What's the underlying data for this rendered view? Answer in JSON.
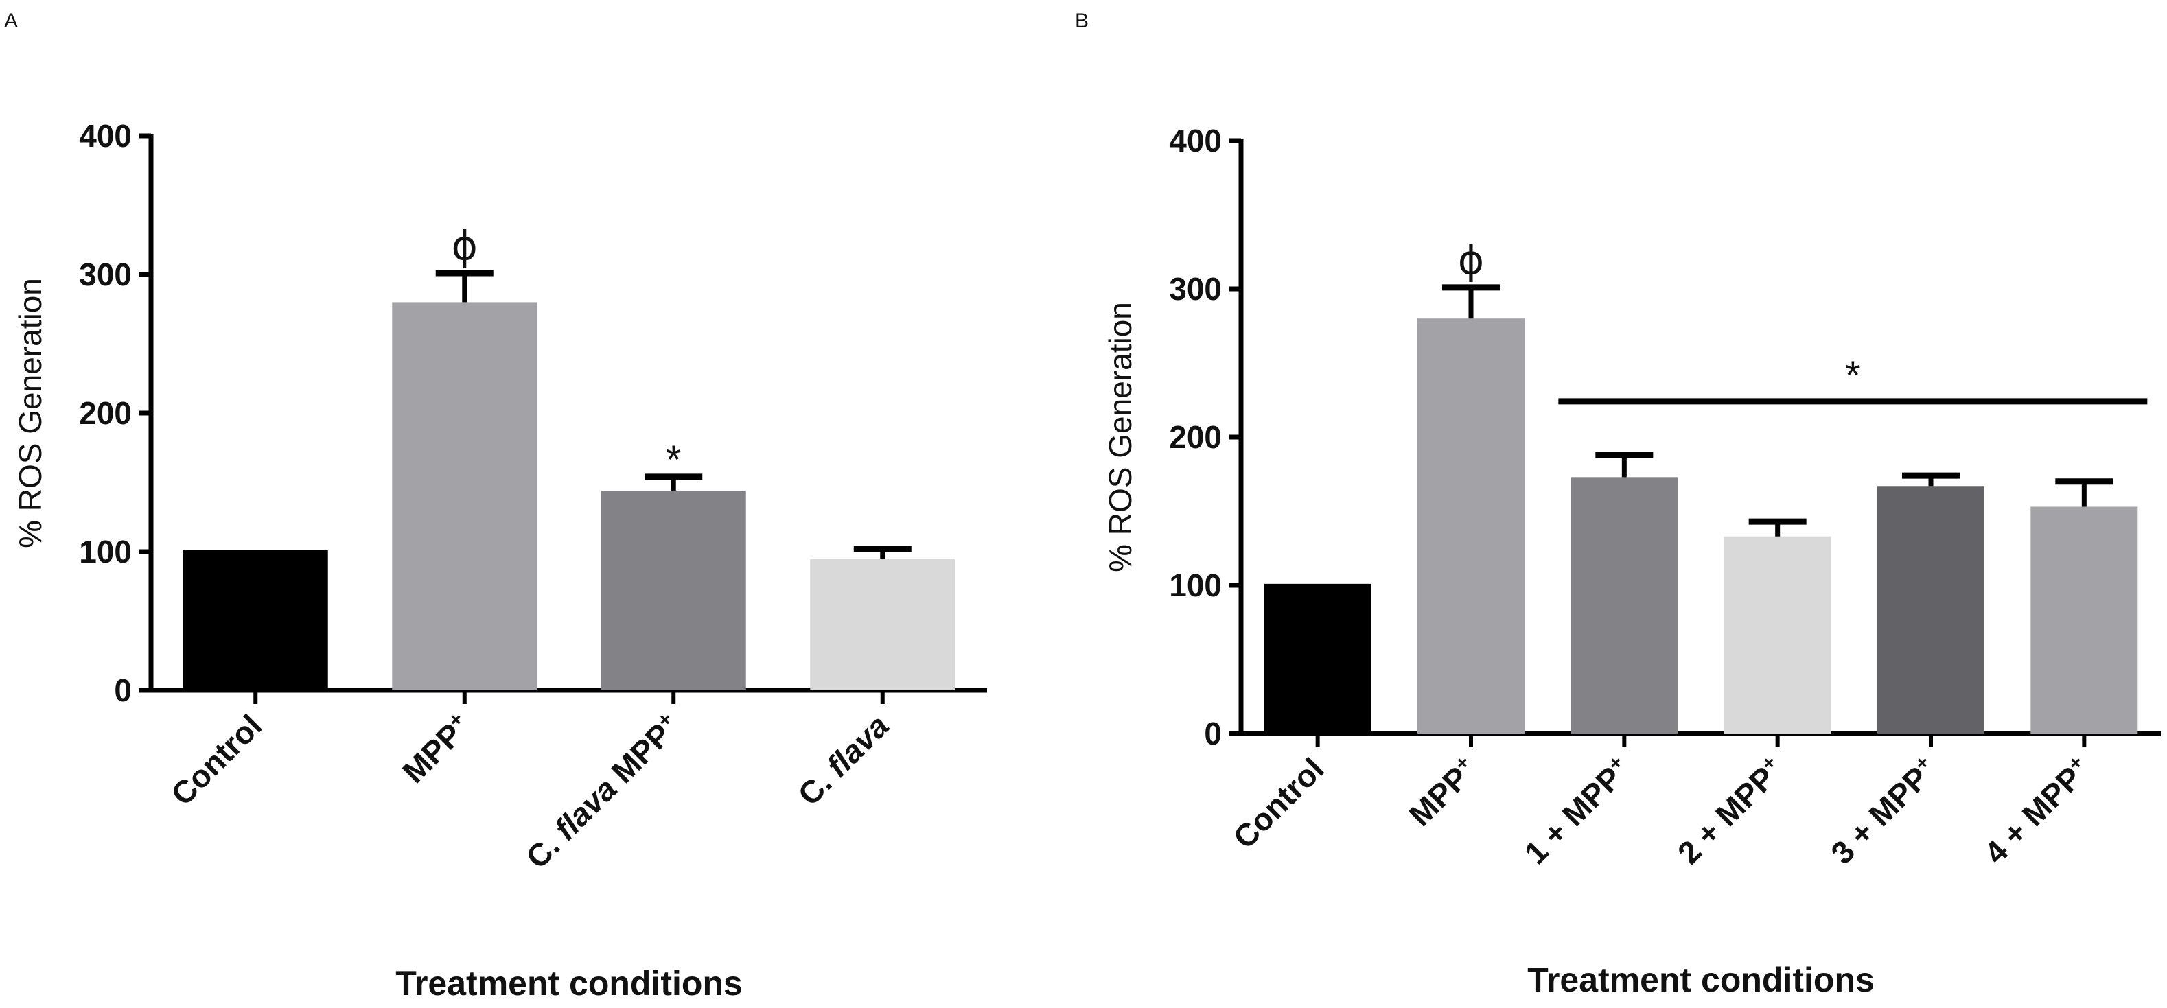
{
  "chart_data": [
    {
      "type": "bar",
      "panel": "A",
      "ylabel": "% ROS Generation",
      "xlabel": "Treatment conditions",
      "ylim": [
        0,
        400
      ],
      "yticks": [
        "0",
        "100",
        "200",
        "300",
        "400"
      ],
      "categories": [
        {
          "parts": [
            {
              "t": "Control"
            }
          ]
        },
        {
          "parts": [
            {
              "t": "MPP"
            },
            {
              "t": "+",
              "sup": true
            }
          ]
        },
        {
          "parts": [
            {
              "t": "C. "
            },
            {
              "t": "flava",
              "i": true
            },
            {
              "t": " MPP"
            },
            {
              "t": "+",
              "sup": true
            }
          ]
        },
        {
          "parts": [
            {
              "t": "C. "
            },
            {
              "t": "flava",
              "i": true
            }
          ]
        }
      ],
      "values": [
        101,
        280,
        144,
        95
      ],
      "errors": [
        0,
        21,
        10,
        7
      ],
      "colors": [
        "#000000",
        "#a3a2a7",
        "#838286",
        "#d9d9d9"
      ],
      "annotations": [
        "",
        "ϕ",
        "*",
        ""
      ]
    },
    {
      "type": "bar",
      "panel": "B",
      "ylabel": "% ROS Generation",
      "xlabel": "Treatment conditions",
      "ylim": [
        0,
        400
      ],
      "yticks": [
        "0",
        "100",
        "200",
        "300",
        "400"
      ],
      "categories": [
        {
          "parts": [
            {
              "t": "Control"
            }
          ]
        },
        {
          "parts": [
            {
              "t": "MPP"
            },
            {
              "t": "+",
              "sup": true
            }
          ]
        },
        {
          "parts": [
            {
              "t": "1 + MPP"
            },
            {
              "t": "+",
              "sup": true
            }
          ]
        },
        {
          "parts": [
            {
              "t": "2 + MPP"
            },
            {
              "t": "+",
              "sup": true
            }
          ]
        },
        {
          "parts": [
            {
              "t": "3 + MPP"
            },
            {
              "t": "+",
              "sup": true
            }
          ]
        },
        {
          "parts": [
            {
              "t": "4 + MPP"
            },
            {
              "t": "+",
              "sup": true
            }
          ]
        }
      ],
      "values": [
        101,
        280,
        173,
        133,
        167,
        153
      ],
      "errors": [
        0,
        21,
        15,
        10,
        7,
        17
      ],
      "colors": [
        "#000000",
        "#a3a2a7",
        "#838286",
        "#d9d9d9",
        "#636266",
        "#a3a2a7"
      ],
      "annotations": [
        "",
        "ϕ",
        "",
        "",
        "",
        ""
      ],
      "bracket": {
        "from": 2,
        "to": 5,
        "label": "*"
      }
    }
  ]
}
